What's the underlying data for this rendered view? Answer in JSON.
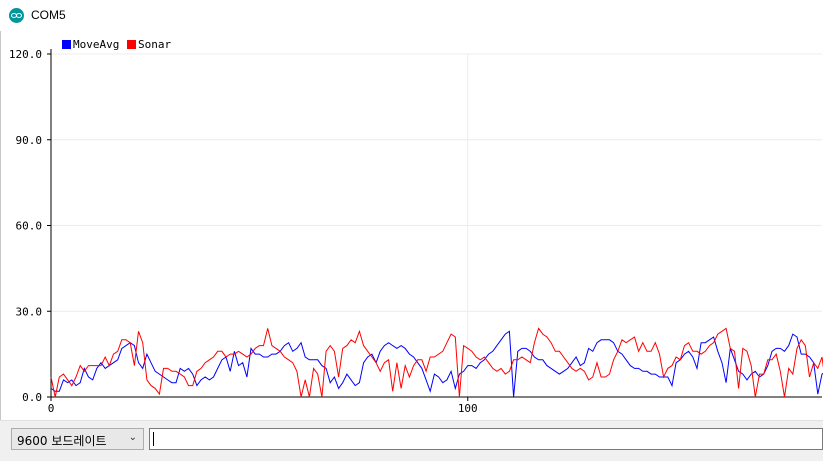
{
  "window": {
    "title": "COM5",
    "icon": "arduino-icon"
  },
  "chart_data": {
    "type": "line",
    "title": "",
    "xlabel": "",
    "ylabel": "",
    "xlim": [
      0,
      185
    ],
    "ylim": [
      0,
      120
    ],
    "yticks": [
      "0.0",
      "30.0",
      "60.0",
      "90.0",
      "120.0"
    ],
    "yticks_values": [
      0,
      30,
      60,
      90,
      120
    ],
    "xticks": [
      "0",
      "100"
    ],
    "xticks_values": [
      0,
      100
    ],
    "grid": true,
    "legend_position": "top-left",
    "series": [
      {
        "name": "MoveAvg",
        "color": "#0000ff",
        "values": [
          3,
          2,
          2,
          6,
          5,
          6,
          4,
          5,
          10,
          7,
          6,
          10,
          12,
          10,
          11,
          12,
          13,
          17,
          18,
          19,
          18,
          12,
          10,
          15,
          12,
          9,
          8,
          7,
          6,
          5,
          5,
          10,
          9,
          10,
          8,
          4,
          6,
          7,
          6,
          7,
          10,
          13,
          14,
          9,
          16,
          11,
          12,
          7,
          17,
          15,
          15,
          14,
          14,
          15,
          15,
          16,
          18,
          19,
          16,
          17,
          19,
          14,
          13,
          13,
          13,
          11,
          10,
          5,
          7,
          3,
          5,
          8,
          6,
          4,
          5,
          12,
          14,
          15,
          12,
          16,
          18,
          19,
          18,
          17,
          18,
          17,
          15,
          14,
          12,
          10,
          6,
          2,
          8,
          7,
          5,
          6,
          9,
          3,
          8,
          9,
          11,
          11,
          10,
          12,
          13,
          15,
          16,
          18,
          20,
          22,
          23,
          0,
          16,
          17,
          17,
          16,
          14,
          13,
          13,
          11,
          10,
          9,
          8,
          9,
          10,
          12,
          14,
          11,
          12,
          17,
          16,
          19,
          20,
          20,
          20,
          19,
          16,
          15,
          13,
          11,
          10,
          10,
          9,
          9,
          8,
          8,
          7,
          7,
          7,
          4,
          12,
          13,
          15,
          16,
          14,
          10,
          19,
          19,
          20,
          21,
          16,
          12,
          5,
          17,
          13,
          9,
          8,
          6,
          8,
          9,
          7,
          8,
          11,
          16,
          17,
          17,
          16,
          18,
          22,
          21,
          15,
          15,
          14,
          12,
          1,
          8,
          9
        ]
      },
      {
        "name": "Sonar",
        "color": "#ff0000",
        "values": [
          7,
          0,
          7,
          8,
          6,
          4,
          7,
          11,
          9,
          11,
          11,
          11,
          11,
          14,
          11,
          15,
          16,
          20,
          20,
          19,
          11,
          23,
          19,
          6,
          4,
          3,
          1,
          10,
          10,
          9,
          9,
          8,
          7,
          4,
          4,
          9,
          10,
          12,
          13,
          14,
          16,
          16,
          14,
          15,
          15,
          16,
          15,
          14,
          15,
          17,
          18,
          18,
          24,
          18,
          17,
          16,
          14,
          13,
          12,
          9,
          0,
          6,
          0,
          10,
          8,
          0,
          16,
          18,
          16,
          7,
          17,
          18,
          20,
          19,
          23,
          18,
          16,
          14,
          12,
          9,
          12,
          13,
          2,
          12,
          3,
          11,
          7,
          11,
          13,
          13,
          9,
          14,
          14,
          15,
          16,
          19,
          22,
          21,
          0,
          18,
          17,
          16,
          14,
          13,
          14,
          12,
          10,
          9,
          10,
          8,
          9,
          13,
          13,
          14,
          13,
          12,
          19,
          24,
          22,
          21,
          19,
          16,
          16,
          14,
          12,
          10,
          9,
          10,
          9,
          6,
          7,
          12,
          7,
          7,
          8,
          13,
          16,
          20,
          19,
          20,
          21,
          16,
          19,
          16,
          16,
          19,
          15,
          7,
          10,
          11,
          14,
          13,
          18,
          19,
          16,
          16,
          15,
          16,
          18,
          19,
          22,
          23,
          24,
          17,
          16,
          3,
          17,
          16,
          11,
          0,
          8,
          8,
          13,
          13,
          15,
          9,
          0,
          10,
          8,
          17,
          20,
          18,
          7,
          12,
          10,
          14,
          3,
          10,
          10
        ]
      }
    ]
  },
  "bottom": {
    "baud_rate": "9600 보드레이트",
    "input_value": ""
  }
}
